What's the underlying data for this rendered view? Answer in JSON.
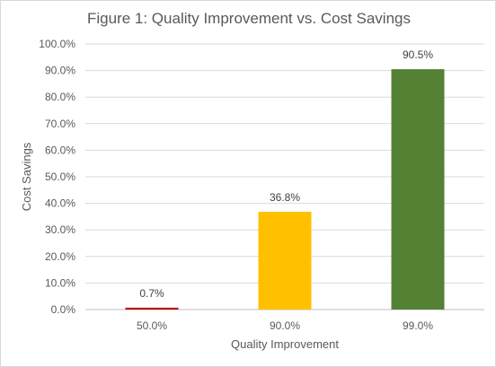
{
  "chart_data": {
    "type": "bar",
    "title": "Figure 1: Quality Improvement vs. Cost Savings",
    "xlabel": "Quality Improvement",
    "ylabel": "Cost Savings",
    "categories": [
      "50.0%",
      "90.0%",
      "99.0%"
    ],
    "values": [
      0.7,
      36.8,
      90.5
    ],
    "data_labels": [
      "0.7%",
      "36.8%",
      "90.5%"
    ],
    "bar_colors": [
      "#c00000",
      "#ffc000",
      "#548235"
    ],
    "ylim": [
      0,
      100
    ],
    "y_ticks": [
      0,
      10,
      20,
      30,
      40,
      50,
      60,
      70,
      80,
      90,
      100
    ],
    "y_tick_labels": [
      "0.0%",
      "10.0%",
      "20.0%",
      "30.0%",
      "40.0%",
      "50.0%",
      "60.0%",
      "70.0%",
      "80.0%",
      "90.0%",
      "100.0%"
    ],
    "grid": true,
    "legend": "none"
  }
}
